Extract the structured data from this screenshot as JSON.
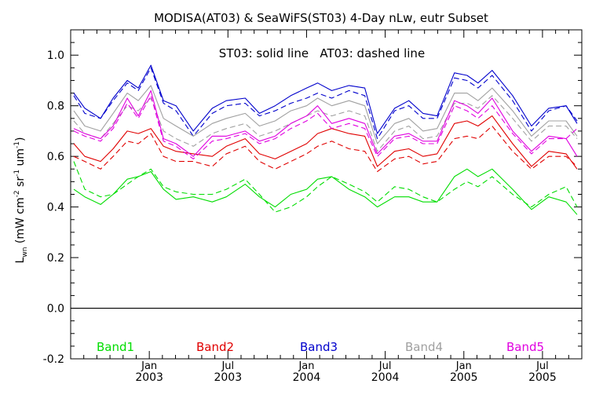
{
  "chart_data": {
    "type": "line",
    "title": "MODISA(AT03) & SeaWiFS(ST03) 4-Day nLw, eutr Subset",
    "annotation": "ST03: solid line   AT03: dashed line",
    "ylabel_main": "L",
    "ylabel_sub": "wn",
    "ylabel_units": "(mW cm",
    "ylabel_units_parts": [
      "(mW cm",
      "-2",
      " sr",
      "-1",
      " um",
      "-1",
      ")"
    ],
    "ylim": [
      -0.2,
      1.1
    ],
    "yticks": [
      -0.2,
      0.0,
      0.2,
      0.4,
      0.6,
      0.8,
      1.0
    ],
    "ytick_labels": [
      "-0.2",
      "0.0",
      "0.2",
      "0.4",
      "0.6",
      "0.8",
      "1.0"
    ],
    "xlim": [
      2002.5,
      2005.75
    ],
    "xticks": [
      2003.0,
      2003.5,
      2004.0,
      2004.5,
      2005.0,
      2005.5
    ],
    "xtick_labels": [
      {
        "top": "Jan",
        "bottom": "2003"
      },
      {
        "top": "Jul",
        "bottom": "2003"
      },
      {
        "top": "Jan",
        "bottom": "2004"
      },
      {
        "top": "Jul",
        "bottom": "2004"
      },
      {
        "top": "Jan",
        "bottom": "2005"
      },
      {
        "top": "Jul",
        "bottom": "2005"
      }
    ],
    "grid": false,
    "zero_line": true,
    "legend": [
      {
        "name": "Band1",
        "color": "#00dd00"
      },
      {
        "name": "Band2",
        "color": "#e00000"
      },
      {
        "name": "Band3",
        "color": "#0000cc"
      },
      {
        "name": "Band4",
        "color": "#a0a0a0"
      },
      {
        "name": "Band5",
        "color": "#e000e0"
      }
    ],
    "x": [
      2002.52,
      2002.59,
      2002.69,
      2002.77,
      2002.86,
      2002.93,
      2003.01,
      2003.09,
      2003.17,
      2003.28,
      2003.4,
      2003.49,
      2003.61,
      2003.7,
      2003.8,
      2003.9,
      2004.0,
      2004.07,
      2004.16,
      2004.27,
      2004.37,
      2004.45,
      2004.56,
      2004.65,
      2004.74,
      2004.83,
      2004.94,
      2005.02,
      2005.09,
      2005.18,
      2005.31,
      2005.43,
      2005.54,
      2005.65,
      2005.72
    ],
    "series": [
      {
        "band": "Band1",
        "sensor": "ST03",
        "style": "solid",
        "color": "#00dd00",
        "values": [
          0.47,
          0.44,
          0.41,
          0.45,
          0.51,
          0.52,
          0.54,
          0.47,
          0.43,
          0.44,
          0.42,
          0.44,
          0.49,
          0.44,
          0.4,
          0.45,
          0.47,
          0.51,
          0.52,
          0.47,
          0.44,
          0.4,
          0.44,
          0.44,
          0.42,
          0.42,
          0.52,
          0.55,
          0.52,
          0.55,
          0.47,
          0.39,
          0.44,
          0.42,
          0.37
        ]
      },
      {
        "band": "Band1",
        "sensor": "AT03",
        "style": "dashed",
        "color": "#00dd00",
        "values": [
          0.58,
          0.47,
          0.44,
          0.45,
          0.49,
          0.52,
          0.55,
          0.48,
          0.46,
          0.45,
          0.45,
          0.47,
          0.51,
          0.45,
          0.38,
          0.4,
          0.44,
          0.48,
          0.52,
          0.49,
          0.46,
          0.42,
          0.48,
          0.47,
          0.44,
          0.42,
          0.47,
          0.5,
          0.48,
          0.52,
          0.45,
          0.4,
          0.45,
          0.48,
          0.4
        ]
      },
      {
        "band": "Band2",
        "sensor": "ST03",
        "style": "solid",
        "color": "#e00000",
        "values": [
          0.65,
          0.6,
          0.58,
          0.63,
          0.7,
          0.69,
          0.71,
          0.64,
          0.62,
          0.61,
          0.6,
          0.64,
          0.67,
          0.61,
          0.59,
          0.62,
          0.65,
          0.69,
          0.71,
          0.69,
          0.68,
          0.56,
          0.62,
          0.63,
          0.6,
          0.61,
          0.73,
          0.74,
          0.72,
          0.76,
          0.65,
          0.56,
          0.62,
          0.61,
          0.55
        ]
      },
      {
        "band": "Band2",
        "sensor": "AT03",
        "style": "dashed",
        "color": "#e00000",
        "values": [
          0.6,
          0.58,
          0.55,
          0.6,
          0.66,
          0.65,
          0.69,
          0.6,
          0.58,
          0.58,
          0.56,
          0.61,
          0.64,
          0.58,
          0.55,
          0.58,
          0.61,
          0.64,
          0.66,
          0.63,
          0.62,
          0.54,
          0.59,
          0.6,
          0.57,
          0.58,
          0.67,
          0.68,
          0.67,
          0.72,
          0.62,
          0.55,
          0.6,
          0.6,
          0.56
        ]
      },
      {
        "band": "Band3",
        "sensor": "ST03",
        "style": "solid",
        "color": "#0000cc",
        "values": [
          0.85,
          0.79,
          0.75,
          0.83,
          0.9,
          0.87,
          0.96,
          0.82,
          0.8,
          0.7,
          0.79,
          0.82,
          0.83,
          0.77,
          0.8,
          0.84,
          0.87,
          0.89,
          0.86,
          0.88,
          0.87,
          0.69,
          0.79,
          0.82,
          0.77,
          0.76,
          0.93,
          0.92,
          0.89,
          0.94,
          0.84,
          0.72,
          0.79,
          0.8,
          0.73
        ]
      },
      {
        "band": "Band3",
        "sensor": "AT03",
        "style": "dashed",
        "color": "#0000cc",
        "values": [
          0.84,
          0.77,
          0.75,
          0.82,
          0.89,
          0.86,
          0.95,
          0.81,
          0.78,
          0.68,
          0.77,
          0.8,
          0.81,
          0.76,
          0.78,
          0.81,
          0.83,
          0.85,
          0.83,
          0.86,
          0.84,
          0.67,
          0.78,
          0.8,
          0.75,
          0.75,
          0.91,
          0.9,
          0.87,
          0.92,
          0.82,
          0.7,
          0.78,
          0.8,
          0.74
        ]
      },
      {
        "band": "Band4",
        "sensor": "ST03",
        "style": "solid",
        "color": "#a0a0a0",
        "values": [
          0.78,
          0.72,
          0.7,
          0.77,
          0.85,
          0.82,
          0.88,
          0.75,
          0.72,
          0.68,
          0.73,
          0.75,
          0.77,
          0.72,
          0.74,
          0.78,
          0.8,
          0.83,
          0.8,
          0.82,
          0.8,
          0.65,
          0.73,
          0.75,
          0.7,
          0.71,
          0.85,
          0.85,
          0.82,
          0.87,
          0.78,
          0.68,
          0.74,
          0.74,
          0.68
        ]
      },
      {
        "band": "Band4",
        "sensor": "AT03",
        "style": "dashed",
        "color": "#a0a0a0",
        "values": [
          0.74,
          0.69,
          0.67,
          0.73,
          0.8,
          0.78,
          0.83,
          0.7,
          0.67,
          0.64,
          0.69,
          0.71,
          0.73,
          0.68,
          0.7,
          0.73,
          0.76,
          0.78,
          0.76,
          0.78,
          0.76,
          0.62,
          0.7,
          0.72,
          0.67,
          0.68,
          0.81,
          0.81,
          0.79,
          0.84,
          0.75,
          0.66,
          0.72,
          0.72,
          0.67
        ]
      },
      {
        "band": "Band5",
        "sensor": "ST03",
        "style": "solid",
        "color": "#e000e0",
        "values": [
          0.71,
          0.69,
          0.67,
          0.72,
          0.83,
          0.76,
          0.86,
          0.67,
          0.65,
          0.6,
          0.68,
          0.68,
          0.7,
          0.66,
          0.68,
          0.73,
          0.76,
          0.8,
          0.73,
          0.75,
          0.73,
          0.61,
          0.68,
          0.69,
          0.66,
          0.66,
          0.82,
          0.8,
          0.77,
          0.83,
          0.7,
          0.62,
          0.68,
          0.67,
          0.6
        ]
      },
      {
        "band": "Band5",
        "sensor": "AT03",
        "style": "dashed",
        "color": "#e000e0",
        "values": [
          0.7,
          0.68,
          0.66,
          0.71,
          0.81,
          0.75,
          0.84,
          0.66,
          0.64,
          0.59,
          0.66,
          0.67,
          0.69,
          0.65,
          0.67,
          0.71,
          0.74,
          0.77,
          0.71,
          0.73,
          0.71,
          0.6,
          0.67,
          0.68,
          0.65,
          0.65,
          0.8,
          0.78,
          0.75,
          0.8,
          0.69,
          0.61,
          0.67,
          0.67,
          0.71
        ]
      }
    ]
  }
}
